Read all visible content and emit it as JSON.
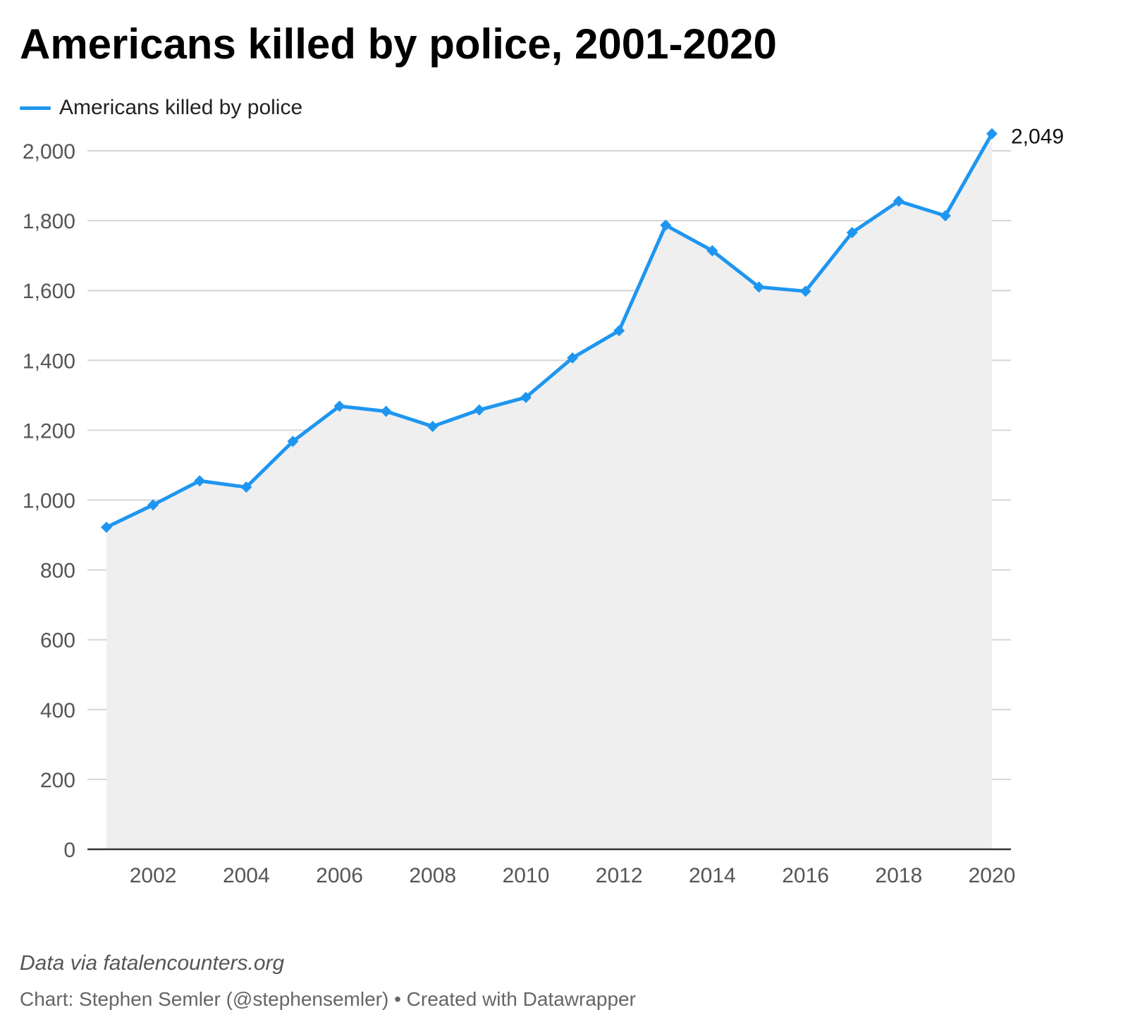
{
  "title": "Americans killed by police, 2001-2020",
  "legend": {
    "label": "Americans killed by police"
  },
  "colors": {
    "line": "#1e96f0",
    "area": "#efefef",
    "grid": "#d6d6d6",
    "axis": "#333333"
  },
  "chart_data": {
    "type": "line",
    "x": [
      2001,
      2002,
      2003,
      2004,
      2005,
      2006,
      2007,
      2008,
      2009,
      2010,
      2011,
      2012,
      2013,
      2014,
      2015,
      2016,
      2017,
      2018,
      2019,
      2020
    ],
    "series": [
      {
        "name": "Americans killed by police",
        "values": [
          922,
          986,
          1055,
          1037,
          1168,
          1269,
          1254,
          1211,
          1258,
          1294,
          1407,
          1485,
          1787,
          1714,
          1610,
          1598,
          1766,
          1856,
          1814,
          2049
        ]
      }
    ],
    "area_fill": true,
    "xticks": [
      "2002",
      "2004",
      "2006",
      "2008",
      "2010",
      "2012",
      "2014",
      "2016",
      "2018",
      "2020"
    ],
    "yticks": [
      "0",
      "200",
      "400",
      "600",
      "800",
      "1,000",
      "1,200",
      "1,400",
      "1,600",
      "1,800",
      "2,000"
    ],
    "ylim": [
      0,
      2000
    ],
    "grid": true,
    "legend_position": "top-left",
    "annotations": [
      {
        "x": 2020,
        "text": "2,049"
      }
    ]
  },
  "footer": {
    "source": "Data via fatalencounters.org",
    "credit": "Chart: Stephen Semler (@stephensemler) • Created with Datawrapper"
  }
}
